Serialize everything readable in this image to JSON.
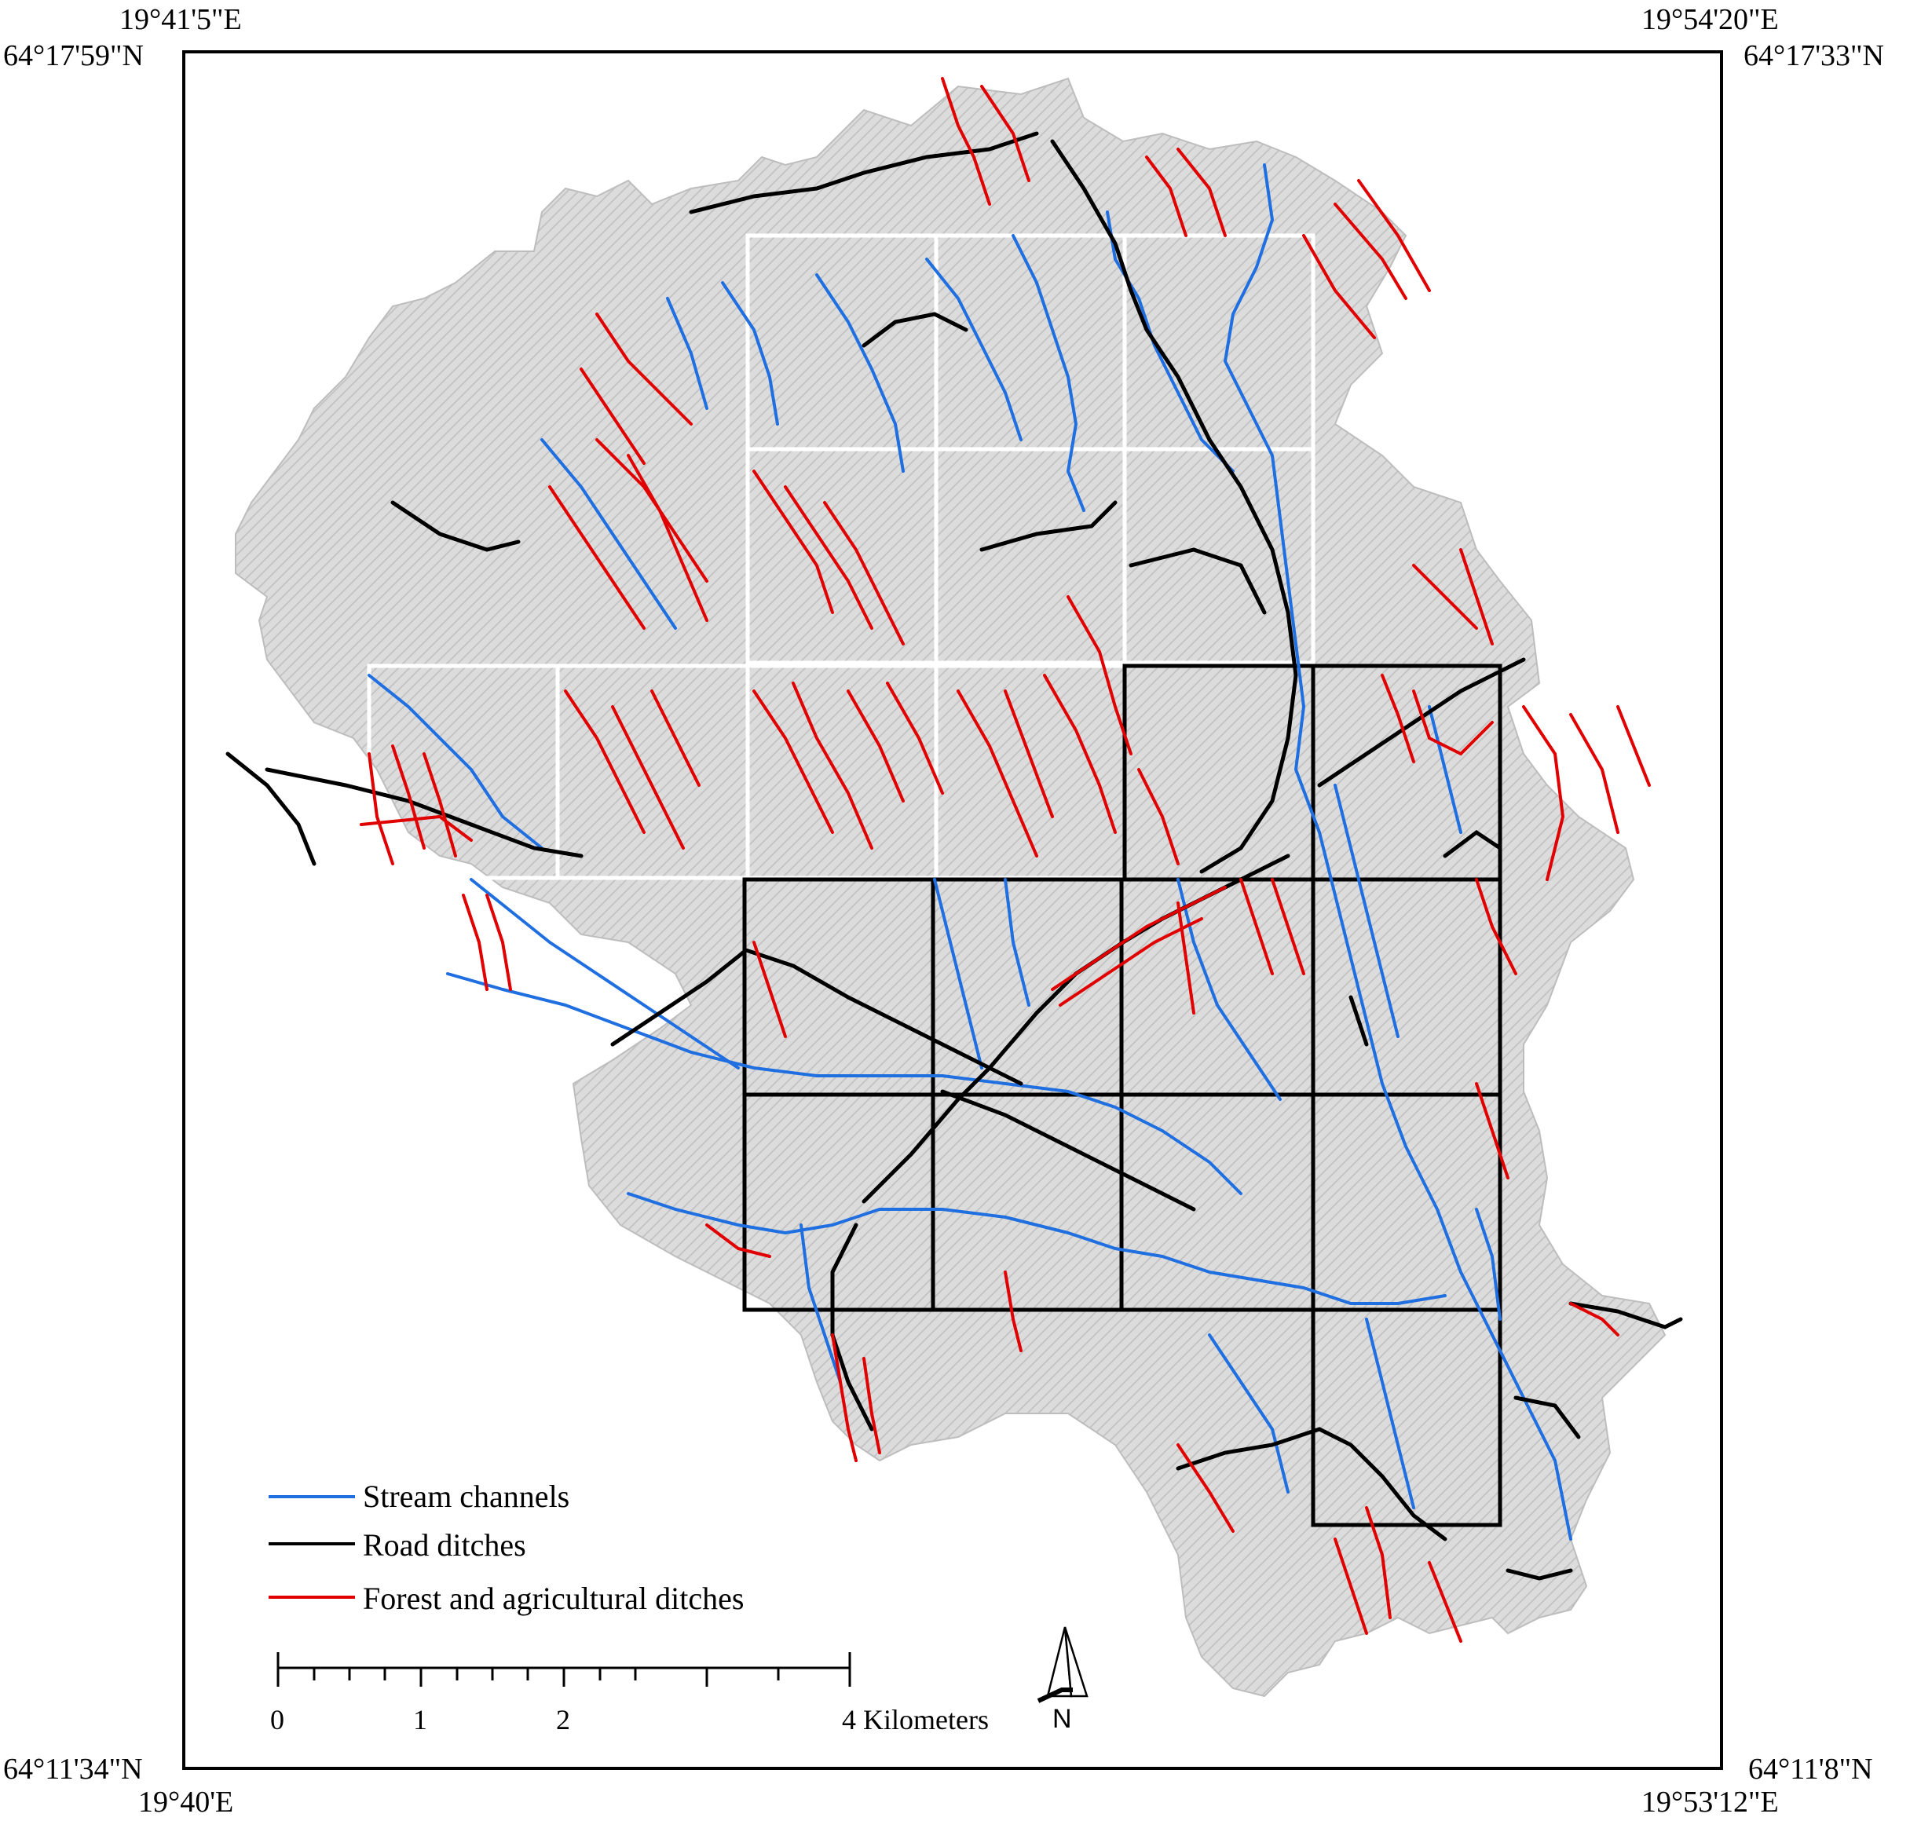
{
  "corners": {
    "top_left_lon": "19°41'5\"E",
    "top_left_lat": "64°17'59\"N",
    "top_right_lon": "19°54'20\"E",
    "top_right_lat": "64°17'33\"N",
    "bottom_left_lat": "64°11'34\"N",
    "bottom_left_lon": "19°40'E",
    "bottom_right_lat": "64°11'8\"N",
    "bottom_right_lon": "19°53'12\"E"
  },
  "legend": {
    "items": [
      {
        "label": "Stream channels",
        "color": "#1f6fe0"
      },
      {
        "label": "Road ditches",
        "color": "#000000"
      },
      {
        "label": "Forest and agricultural ditches",
        "color": "#e00000"
      }
    ]
  },
  "scale_bar": {
    "labels": [
      "0",
      "1",
      "2",
      "4 Kilometers"
    ]
  },
  "north_arrow": {
    "label": "N"
  },
  "colors": {
    "stream": "#1f6fe0",
    "road": "#000000",
    "ditch": "#e00000",
    "terrain": "#d9d9d9",
    "grid_white": "#ffffff",
    "grid_black": "#000000"
  }
}
